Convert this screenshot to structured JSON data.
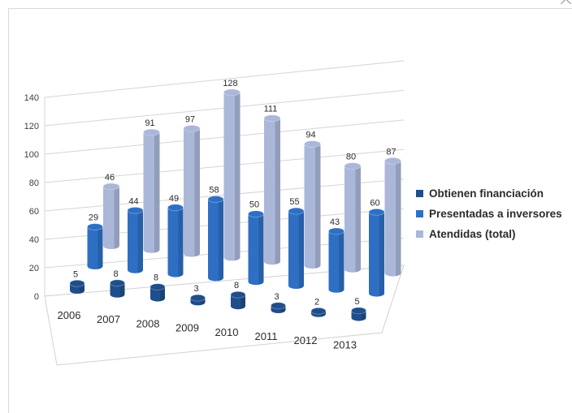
{
  "chart_data": {
    "type": "bar",
    "categories": [
      "2006",
      "2007",
      "2008",
      "2009",
      "2010",
      "2011",
      "2012",
      "2013"
    ],
    "series": [
      {
        "name": "Obtienen financiación",
        "values": [
          5,
          8,
          8,
          3,
          8,
          3,
          2,
          5
        ],
        "color": "#1f4e8c"
      },
      {
        "name": "Presentadas a inversores",
        "values": [
          29,
          44,
          49,
          58,
          50,
          55,
          43,
          60
        ],
        "color": "#2e6fc4"
      },
      {
        "name": "Atendidas (total)",
        "values": [
          46,
          91,
          97,
          128,
          111,
          94,
          80,
          87
        ],
        "color": "#aab7d9"
      }
    ],
    "y_ticks": [
      "0",
      "20",
      "40",
      "60",
      "80",
      "100",
      "120",
      "140"
    ],
    "ylim": [
      0,
      140
    ],
    "grid": true,
    "legend_position": "right"
  }
}
